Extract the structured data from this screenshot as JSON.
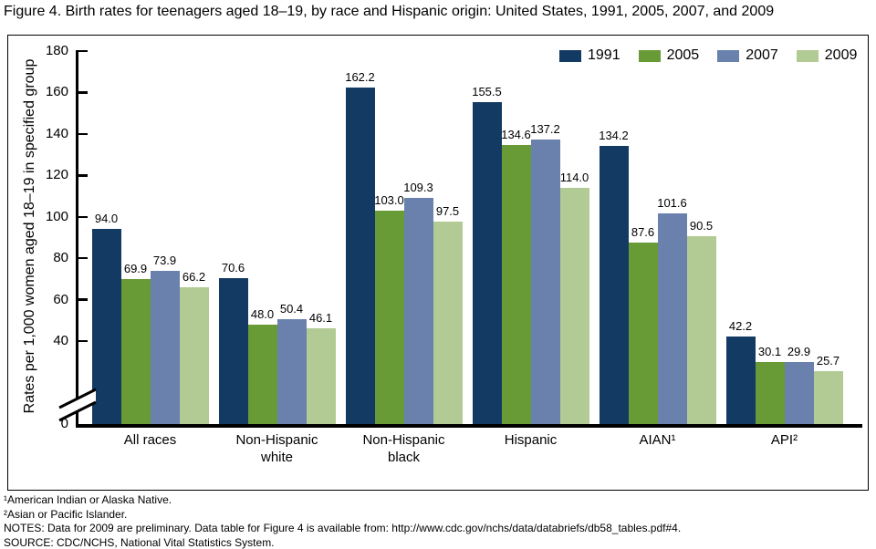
{
  "title": "Figure 4. Birth rates for teenagers aged 18–19, by race and Hispanic origin: United States, 1991, 2005, 2007, and 2009",
  "chart_data": {
    "type": "bar",
    "title": "Birth rates for teenagers aged 18–19, by race and Hispanic origin",
    "ylabel": "Rates per 1,000 women aged 18–19 in specified group",
    "xlabel": "",
    "ylim": [
      0,
      180
    ],
    "yticks": [
      0,
      40,
      60,
      80,
      100,
      120,
      140,
      160,
      180
    ],
    "axis_break_between_0_and_40": true,
    "grid": false,
    "legend_position": "top-right",
    "value_label_decimals": 1,
    "categories": [
      "All races",
      "Non-Hispanic white",
      "Non-Hispanic black",
      "Hispanic",
      "AIAN¹",
      "API²"
    ],
    "category_label_lines": [
      [
        "All races"
      ],
      [
        "Non-Hispanic",
        "white"
      ],
      [
        "Non-Hispanic",
        "black"
      ],
      [
        "Hispanic"
      ],
      [
        "AIAN¹"
      ],
      [
        "API²"
      ]
    ],
    "series": [
      {
        "name": "1991",
        "color": "#123a62",
        "values": [
          94.0,
          70.6,
          162.2,
          155.5,
          134.2,
          42.2
        ]
      },
      {
        "name": "2005",
        "color": "#689a35",
        "values": [
          69.9,
          48.0,
          103.0,
          134.6,
          87.6,
          30.1
        ]
      },
      {
        "name": "2007",
        "color": "#6a80ad",
        "values": [
          73.9,
          50.4,
          109.3,
          137.2,
          101.6,
          29.9
        ]
      },
      {
        "name": "2009",
        "color": "#b2ca93",
        "values": [
          66.2,
          46.1,
          97.5,
          114.0,
          90.5,
          25.7
        ]
      }
    ]
  },
  "footnotes": [
    "¹American Indian or Alaska Native.",
    "²Asian or Pacific Islander.",
    "NOTES: Data for 2009 are preliminary. Data table for Figure 4 is available from: http://www.cdc.gov/nchs/data/databriefs/db58_tables.pdf#4.",
    "SOURCE: CDC/NCHS, National Vital Statistics System."
  ]
}
